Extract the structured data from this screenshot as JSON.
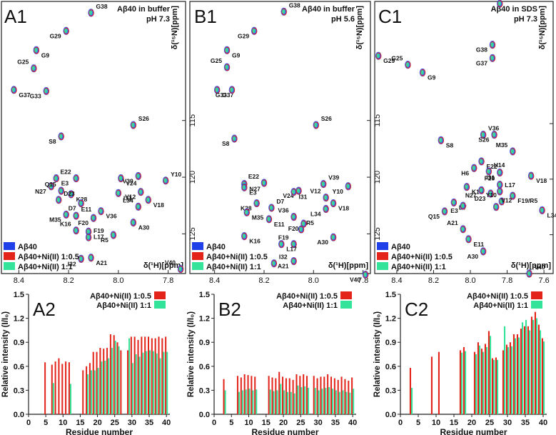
{
  "colors": {
    "blue": "#1f3fe8",
    "red": "#e3241b",
    "green": "#34e39a",
    "axis": "#222222"
  },
  "legend_nmr": [
    "Aβ40",
    "Aβ40+Ni(II) 1:0.5",
    "Aβ40+Ni(II) 1:1"
  ],
  "legend_bar": [
    "Aβ40+Ni(II) 1:0.5",
    "Aβ40+Ni(II) 1:1"
  ],
  "chart_data": [
    {
      "id": "A1",
      "type": "scatter",
      "panel_label": "A1",
      "title": "Aβ40 in buffer",
      "subtitle": "pH 7.3",
      "xlabel": "δ(¹H)[ppm]",
      "ylabel": "δ(¹⁵N)[ppm]",
      "xlim": [
        8.47,
        7.73
      ],
      "ylim": [
        104.5,
        128.5
      ],
      "xticks": [
        8.4,
        8.2,
        8.0,
        7.8
      ],
      "yticks": [
        115,
        120,
        125
      ],
      "peaks": [
        {
          "label": "G38",
          "x": 8.11,
          "y": 105.5
        },
        {
          "label": "G29",
          "x": 8.21,
          "y": 107.1
        },
        {
          "label": "G9",
          "x": 8.33,
          "y": 108.8
        },
        {
          "label": "G25",
          "x": 8.34,
          "y": 110.4
        },
        {
          "label": "G37",
          "x": 8.42,
          "y": 112.3
        },
        {
          "label": "G33",
          "x": 8.29,
          "y": 112.4
        },
        {
          "label": "S26",
          "x": 7.94,
          "y": 115.4
        },
        {
          "label": "S8",
          "x": 8.23,
          "y": 116.4
        },
        {
          "label": "E3",
          "x": 8.25,
          "y": 120.1
        },
        {
          "label": "E22",
          "x": 8.17,
          "y": 120.1
        },
        {
          "label": "V24",
          "x": 7.99,
          "y": 120.1
        },
        {
          "label": "V39",
          "x": 7.92,
          "y": 119.9
        },
        {
          "label": "Y10",
          "x": 7.81,
          "y": 120.3
        },
        {
          "label": "N27",
          "x": 8.27,
          "y": 120.8
        },
        {
          "label": "I31",
          "x": 8.0,
          "y": 121.4
        },
        {
          "label": "Q15",
          "x": 8.23,
          "y": 121.2
        },
        {
          "label": "K28",
          "x": 8.19,
          "y": 121.5
        },
        {
          "label": "V12",
          "x": 7.91,
          "y": 121.3
        },
        {
          "label": "D23",
          "x": 8.24,
          "y": 122.0
        },
        {
          "label": "D7",
          "x": 8.15,
          "y": 122.3
        },
        {
          "label": "V18",
          "x": 7.88,
          "y": 122.0
        },
        {
          "label": "L34",
          "x": 7.92,
          "y": 122.6
        },
        {
          "label": "V36",
          "x": 8.07,
          "y": 123.0
        },
        {
          "label": "M35",
          "x": 8.21,
          "y": 123.3
        },
        {
          "label": "E11",
          "x": 8.17,
          "y": 123.4
        },
        {
          "label": "F20",
          "x": 8.1,
          "y": 123.6
        },
        {
          "label": "A30",
          "x": 7.94,
          "y": 124.0
        },
        {
          "label": "K16",
          "x": 8.17,
          "y": 124.7
        },
        {
          "label": "L17",
          "x": 8.12,
          "y": 124.8
        },
        {
          "label": "R5",
          "x": 8.02,
          "y": 125.1
        },
        {
          "label": "F19",
          "x": 8.12,
          "y": 125.3
        },
        {
          "label": "I32",
          "x": 8.15,
          "y": 127.2
        },
        {
          "label": "A21",
          "x": 8.11,
          "y": 127.1
        },
        {
          "label": "V40",
          "x": 7.75,
          "y": 128.1
        }
      ]
    },
    {
      "id": "B1",
      "type": "scatter",
      "panel_label": "B1",
      "title": "Aβ40 in buffer",
      "subtitle": "pH 5.6",
      "xlabel": "δ(¹H)[ppm]",
      "ylabel": "δ(¹⁵N)[ppm]",
      "xlim": [
        8.5,
        7.77
      ],
      "ylim": [
        104.5,
        128.5
      ],
      "xticks": [
        8.4,
        8.2,
        8.0,
        7.8
      ],
      "yticks": [
        115,
        120,
        125
      ],
      "peaks": [
        {
          "label": "G38",
          "x": 8.12,
          "y": 105.4
        },
        {
          "label": "G29",
          "x": 8.24,
          "y": 107.1
        },
        {
          "label": "G9",
          "x": 8.35,
          "y": 108.8
        },
        {
          "label": "G25",
          "x": 8.35,
          "y": 110.3
        },
        {
          "label": "G37",
          "x": 8.39,
          "y": 112.3
        },
        {
          "label": "G33",
          "x": 8.33,
          "y": 112.3
        },
        {
          "label": "S26",
          "x": 7.99,
          "y": 115.4
        },
        {
          "label": "S8",
          "x": 8.32,
          "y": 116.6
        },
        {
          "label": "N27",
          "x": 8.28,
          "y": 120.6
        },
        {
          "label": "E22",
          "x": 8.2,
          "y": 120.5
        },
        {
          "label": "E3",
          "x": 8.28,
          "y": 120.9
        },
        {
          "label": "V24",
          "x": 8.06,
          "y": 121.2
        },
        {
          "label": "V39",
          "x": 7.96,
          "y": 120.6
        },
        {
          "label": "Y10",
          "x": 7.86,
          "y": 120.8
        },
        {
          "label": "I31",
          "x": 8.08,
          "y": 121.3
        },
        {
          "label": "V12",
          "x": 7.95,
          "y": 121.8
        },
        {
          "label": "V18",
          "x": 7.92,
          "y": 122.3
        },
        {
          "label": "K28",
          "x": 8.23,
          "y": 122.3
        },
        {
          "label": "D7",
          "x": 8.17,
          "y": 122.7
        },
        {
          "label": "L34",
          "x": 7.95,
          "y": 122.8
        },
        {
          "label": "M35",
          "x": 8.27,
          "y": 123.1
        },
        {
          "label": "V36",
          "x": 8.08,
          "y": 123.5
        },
        {
          "label": "E11",
          "x": 8.18,
          "y": 123.7
        },
        {
          "label": "F20",
          "x": 8.04,
          "y": 124.1
        },
        {
          "label": "R5",
          "x": 8.05,
          "y": 124.6
        },
        {
          "label": "A30",
          "x": 7.92,
          "y": 125.3
        },
        {
          "label": "K16",
          "x": 8.28,
          "y": 125.2
        },
        {
          "label": "F19",
          "x": 8.08,
          "y": 125.9
        },
        {
          "label": "L17",
          "x": 8.13,
          "y": 125.9
        },
        {
          "label": "A21",
          "x": 8.08,
          "y": 127.4
        },
        {
          "label": "I32",
          "x": 8.16,
          "y": 127.6
        },
        {
          "label": "V40",
          "x": 7.79,
          "y": 128.6
        }
      ]
    },
    {
      "id": "C1",
      "type": "scatter",
      "panel_label": "C1",
      "title": "Aβ40 in SDS",
      "subtitle": "pH 7.3",
      "xlabel": "δ(¹H)[ppm]",
      "ylabel": "δ(¹⁵N)[ppm]",
      "xlim": [
        8.52,
        7.55
      ],
      "ylim": [
        104.0,
        128.5
      ],
      "xticks": [
        8.4,
        8.2,
        8.0,
        7.8,
        7.6
      ],
      "yticks": [
        115,
        120,
        125
      ],
      "peaks": [
        {
          "label": "G33",
          "x": 7.84,
          "y": 104.2
        },
        {
          "label": "G38",
          "x": 7.88,
          "y": 107.9
        },
        {
          "label": "G29",
          "x": 8.5,
          "y": 108.9
        },
        {
          "label": "G25",
          "x": 8.34,
          "y": 109.7
        },
        {
          "label": "G9",
          "x": 8.26,
          "y": 110.4
        },
        {
          "label": "G37",
          "x": 7.88,
          "y": 109.1
        },
        {
          "label": "V36",
          "x": 7.93,
          "y": 116.0
        },
        {
          "label": "S26",
          "x": 7.87,
          "y": 116.0
        },
        {
          "label": "S8",
          "x": 8.16,
          "y": 116.5
        },
        {
          "label": "M35",
          "x": 7.77,
          "y": 117.5
        },
        {
          "label": "E22",
          "x": 7.94,
          "y": 118.4
        },
        {
          "label": "H6",
          "x": 7.98,
          "y": 119.0
        },
        {
          "label": "H14",
          "x": 7.9,
          "y": 119.3
        },
        {
          "label": "I31",
          "x": 7.84,
          "y": 119.4
        },
        {
          "label": "V18",
          "x": 7.67,
          "y": 119.7
        },
        {
          "label": "F20",
          "x": 7.84,
          "y": 120.5
        },
        {
          "label": "K16",
          "x": 8.02,
          "y": 120.7
        },
        {
          "label": "N27",
          "x": 7.94,
          "y": 121.0
        },
        {
          "label": "L17",
          "x": 7.84,
          "y": 121.1
        },
        {
          "label": "D23",
          "x": 7.89,
          "y": 121.3
        },
        {
          "label": "F19/R5",
          "x": 7.77,
          "y": 121.5
        },
        {
          "label": "Y10",
          "x": 7.83,
          "y": 122.0
        },
        {
          "label": "D7",
          "x": 8.09,
          "y": 122.1
        },
        {
          "label": "E3",
          "x": 8.04,
          "y": 122.4
        },
        {
          "label": "V12",
          "x": 7.86,
          "y": 122.5
        },
        {
          "label": "Q15",
          "x": 8.14,
          "y": 122.9
        },
        {
          "label": "L34",
          "x": 7.61,
          "y": 122.8
        },
        {
          "label": "A21",
          "x": 8.04,
          "y": 124.5
        },
        {
          "label": "E11",
          "x": 8.01,
          "y": 125.4
        },
        {
          "label": "A30",
          "x": 7.93,
          "y": 126.5
        },
        {
          "label": "V40",
          "x": 7.68,
          "y": 128.5
        }
      ]
    },
    {
      "id": "A2",
      "type": "bar",
      "panel_label": "A2",
      "xlabel": "Residue number",
      "ylabel": "Relative intensity (I/I₀)",
      "xlim": [
        0,
        41
      ],
      "ylim": [
        0,
        1.5
      ],
      "xticks": [
        0,
        5,
        10,
        15,
        20,
        25,
        30,
        35,
        40
      ],
      "yticks": [
        0.0,
        0.3,
        0.6,
        0.9,
        1.2,
        1.5
      ],
      "series": [
        {
          "name": "Aβ40+Ni(II) 1:0.5",
          "residues": [
            5,
            7,
            8,
            9,
            10,
            11,
            12,
            16,
            17,
            18,
            19,
            20,
            21,
            22,
            23,
            24,
            25,
            26,
            27,
            29,
            30,
            31,
            32,
            33,
            34,
            35,
            36,
            37,
            38,
            39,
            40
          ],
          "values": [
            0.65,
            0.62,
            0.66,
            0.7,
            0.63,
            0.66,
            0.65,
            0.55,
            0.6,
            0.64,
            0.78,
            0.78,
            0.83,
            0.82,
            0.83,
            1.0,
            0.99,
            0.9,
            0.8,
            0.8,
            0.97,
            0.97,
            0.93,
            0.97,
            0.97,
            0.97,
            0.95,
            0.95,
            0.97,
            0.95,
            0.97
          ]
        },
        {
          "name": "Aβ40+Ni(II) 1:1",
          "residues": [
            7,
            12,
            17,
            18,
            19,
            20,
            21,
            22,
            23,
            24,
            25,
            26,
            29,
            30,
            31,
            32,
            33,
            34,
            35,
            36,
            37,
            38,
            39,
            40
          ],
          "values": [
            0.39,
            0.38,
            0.5,
            0.55,
            0.55,
            0.58,
            0.66,
            0.67,
            0.7,
            0.83,
            0.92,
            0.85,
            0.95,
            0.64,
            0.75,
            0.72,
            0.77,
            0.79,
            0.8,
            0.79,
            0.76,
            0.7,
            0.78,
            0.78
          ]
        }
      ]
    },
    {
      "id": "B2",
      "type": "bar",
      "panel_label": "B2",
      "xlabel": "Residue number",
      "ylabel": "Relative intensity (I/I₀)",
      "xlim": [
        0,
        41
      ],
      "ylim": [
        0,
        1.5
      ],
      "xticks": [
        0,
        5,
        10,
        15,
        20,
        25,
        30,
        35,
        40
      ],
      "yticks": [
        0.0,
        0.3,
        0.6,
        0.9,
        1.2,
        1.5
      ],
      "series": [
        {
          "name": "Aβ40+Ni(II) 1:0.5",
          "residues": [
            3,
            7,
            8,
            9,
            10,
            11,
            12,
            16,
            17,
            18,
            19,
            20,
            21,
            22,
            23,
            24,
            25,
            26,
            27,
            29,
            30,
            31,
            32,
            33,
            34,
            35,
            36,
            37,
            38,
            39,
            40
          ],
          "values": [
            0.44,
            0.48,
            0.46,
            0.5,
            0.49,
            0.48,
            0.47,
            0.48,
            0.46,
            0.45,
            0.53,
            0.47,
            0.45,
            0.45,
            0.43,
            0.5,
            0.48,
            0.5,
            0.48,
            0.48,
            0.45,
            0.47,
            0.47,
            0.5,
            0.47,
            0.45,
            0.43,
            0.47,
            0.44,
            0.42,
            0.46
          ]
        },
        {
          "name": "Aβ40+Ni(II) 1:1",
          "residues": [
            3,
            7,
            8,
            9,
            10,
            11,
            12,
            16,
            17,
            18,
            19,
            20,
            21,
            22,
            23,
            24,
            25,
            26,
            27,
            29,
            30,
            31,
            32,
            33,
            34,
            35,
            36,
            37,
            38,
            39,
            40
          ],
          "values": [
            0.3,
            0.28,
            0.3,
            0.31,
            0.32,
            0.3,
            0.31,
            0.31,
            0.29,
            0.3,
            0.38,
            0.3,
            0.28,
            0.28,
            0.26,
            0.36,
            0.34,
            0.35,
            0.33,
            0.33,
            0.3,
            0.32,
            0.33,
            0.34,
            0.32,
            0.3,
            0.28,
            0.3,
            0.28,
            0.27,
            0.32
          ]
        }
      ]
    },
    {
      "id": "C2",
      "type": "bar",
      "panel_label": "C2",
      "xlabel": "Residue number",
      "ylabel": "Relative intensity (I/I₀)",
      "xlim": [
        0,
        41
      ],
      "ylim": [
        0,
        1.5
      ],
      "xticks": [
        0,
        5,
        10,
        15,
        20,
        25,
        30,
        35,
        40
      ],
      "yticks": [
        0.0,
        0.3,
        0.6,
        0.9,
        1.2,
        1.5
      ],
      "series": [
        {
          "name": "Aβ40+Ni(II) 1:0.5",
          "residues": [
            3,
            9,
            11,
            17,
            18,
            21,
            22,
            23,
            24,
            25,
            26,
            27,
            29,
            30,
            31,
            32,
            33,
            34,
            35,
            36,
            37,
            38,
            39,
            40
          ],
          "values": [
            0.58,
            0.72,
            0.78,
            0.8,
            0.84,
            0.78,
            0.9,
            0.82,
            0.88,
            1.04,
            0.7,
            0.71,
            0.8,
            0.87,
            0.9,
            1.0,
            1.0,
            1.07,
            1.1,
            1.1,
            1.22,
            1.28,
            1.12,
            0.95
          ]
        },
        {
          "name": "Aβ40+Ni(II) 1:1",
          "residues": [
            3,
            17,
            18,
            21,
            22,
            23,
            24,
            25,
            26,
            27,
            29,
            30,
            31,
            32,
            33,
            34,
            35,
            36,
            37,
            38,
            39,
            40
          ],
          "values": [
            0.33,
            0.77,
            0.79,
            0.75,
            0.86,
            0.78,
            0.84,
            0.98,
            0.68,
            0.68,
            1.1,
            0.84,
            0.85,
            0.95,
            0.96,
            1.15,
            1.18,
            1.05,
            1.18,
            1.2,
            1.05,
            0.91
          ]
        }
      ]
    }
  ]
}
